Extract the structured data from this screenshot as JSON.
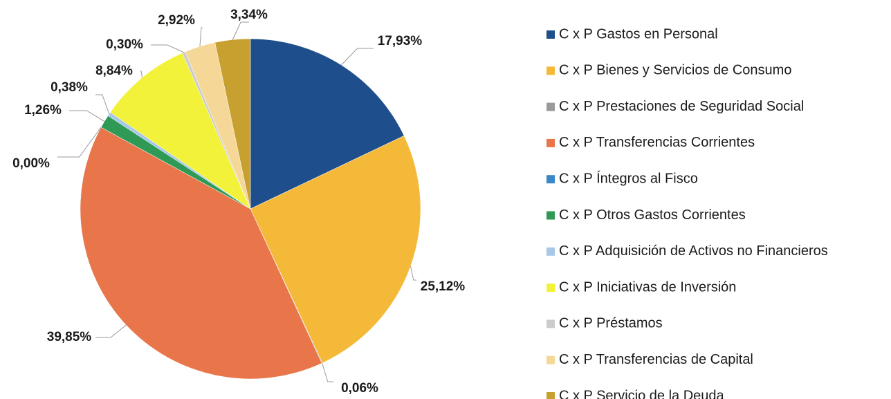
{
  "chart_data": {
    "type": "pie",
    "categories": [
      "C x P Gastos en Personal",
      "C x P Bienes y Servicios de Consumo",
      "C x P Prestaciones de Seguridad Social",
      "C x P Transferencias Corrientes",
      "C x P Íntegros al Fisco",
      "C x P Otros Gastos Corrientes",
      "C x P Adquisición de Activos no Financieros",
      "C x P Iniciativas de Inversión",
      "C x P Préstamos",
      "C x P Transferencias de Capital",
      "C x P Servicio de la Deuda"
    ],
    "values": [
      17.93,
      25.12,
      0.06,
      39.85,
      0.0,
      1.26,
      0.38,
      8.84,
      0.3,
      2.92,
      3.34
    ],
    "value_labels": [
      "17,93%",
      "25,12%",
      "0,06%",
      "39,85%",
      "0,00%",
      "1,26%",
      "0,38%",
      "8,84%",
      "0,30%",
      "2,92%",
      "3,34%"
    ],
    "colors": [
      "#1f4e8c",
      "#f5b93a",
      "#9a9a9a",
      "#e8764a",
      "#3a88c8",
      "#2e9a55",
      "#a8c8e8",
      "#f2f23a",
      "#cccccc",
      "#f5d898",
      "#c8a030"
    ],
    "legend": "right"
  }
}
